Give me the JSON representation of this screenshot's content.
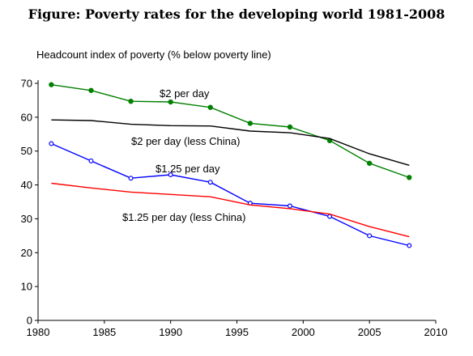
{
  "chart_data": {
    "type": "line",
    "title": "Figure: Poverty rates for the developing world 1981-2008",
    "ylabel": "Headcount index of poverty (% below poverty line)",
    "xlabel": "",
    "xlim": [
      1980,
      2010
    ],
    "ylim": [
      0,
      70
    ],
    "x_ticks": [
      "1980",
      "1985",
      "1990",
      "1995",
      "2000",
      "2005",
      "2010"
    ],
    "y_ticks": [
      "0",
      "10",
      "20",
      "30",
      "40",
      "50",
      "60",
      "70"
    ],
    "grid": false,
    "legend": "inline labels",
    "series": [
      {
        "name": "$2 per day",
        "color": "#008000",
        "marker": "filled-circle",
        "x": [
          1981,
          1984,
          1987,
          1990,
          1993,
          1996,
          1999,
          2002,
          2005,
          2008
        ],
        "values": [
          69.6,
          67.9,
          64.7,
          64.5,
          62.9,
          58.2,
          57.1,
          53.1,
          46.4,
          42.2
        ]
      },
      {
        "name": "$2 per day (less China)",
        "color": "#000000",
        "marker": "none",
        "x": [
          1981,
          1984,
          1987,
          1990,
          1993,
          1996,
          1999,
          2002,
          2005,
          2008
        ],
        "values": [
          59.2,
          59.0,
          57.9,
          57.5,
          57.4,
          55.9,
          55.4,
          53.7,
          49.2,
          45.8
        ]
      },
      {
        "name": "$1.25 per day",
        "color": "#0000ff",
        "marker": "open-circle",
        "x": [
          1981,
          1984,
          1987,
          1990,
          1993,
          1996,
          1999,
          2002,
          2005,
          2008
        ],
        "values": [
          52.2,
          47.1,
          42.0,
          43.0,
          40.8,
          34.6,
          33.8,
          30.7,
          25.0,
          22.1
        ]
      },
      {
        "name": "$1.25 per day (less China)",
        "color": "#ff0000",
        "marker": "none",
        "x": [
          1981,
          1984,
          1987,
          1990,
          1993,
          1996,
          1999,
          2002,
          2005,
          2008
        ],
        "values": [
          40.5,
          39.1,
          37.9,
          37.2,
          36.5,
          34.1,
          33.0,
          31.4,
          27.7,
          24.7
        ]
      }
    ]
  }
}
